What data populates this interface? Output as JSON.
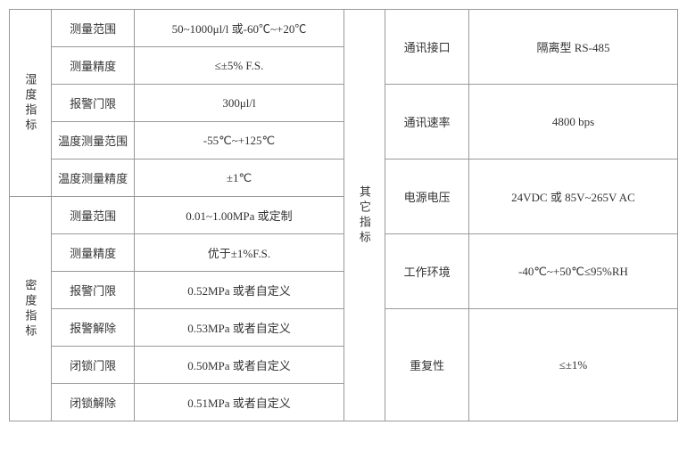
{
  "table": {
    "left_groups": [
      {
        "label": "湿度指标",
        "rows": [
          {
            "param": "测量范围",
            "value": "50~1000μl/l 或-60℃~+20℃"
          },
          {
            "param": "测量精度",
            "value": "≤±5% F.S."
          },
          {
            "param": "报警门限",
            "value": "300μl/l"
          },
          {
            "param": "温度测量范围",
            "value": "-55℃~+125℃"
          },
          {
            "param": "温度测量精度",
            "value": "±1℃"
          }
        ]
      },
      {
        "label": "密度指标",
        "rows": [
          {
            "param": "测量范围",
            "value": "0.01~1.00MPa 或定制"
          },
          {
            "param": "测量精度",
            "value": "优于±1%F.S."
          },
          {
            "param": "报警门限",
            "value": "0.52MPa 或者自定义"
          },
          {
            "param": "报警解除",
            "value": "0.53MPa 或者自定义"
          },
          {
            "param": "闭锁门限",
            "value": "0.50MPa 或者自定义"
          },
          {
            "param": "闭锁解除",
            "value": "0.51MPa 或者自定义"
          }
        ]
      }
    ],
    "right_group": {
      "label": "其它指标",
      "rows": [
        {
          "param": "通讯接口",
          "value": "隔离型 RS-485"
        },
        {
          "param": "通讯速率",
          "value": "4800 bps"
        },
        {
          "param": "电源电压",
          "value": "24VDC 或 85V~265V AC"
        },
        {
          "param": "工作环境",
          "value": "-40℃~+50℃≤95%RH"
        },
        {
          "param": "重复性",
          "value": "≤±1%"
        }
      ]
    }
  }
}
